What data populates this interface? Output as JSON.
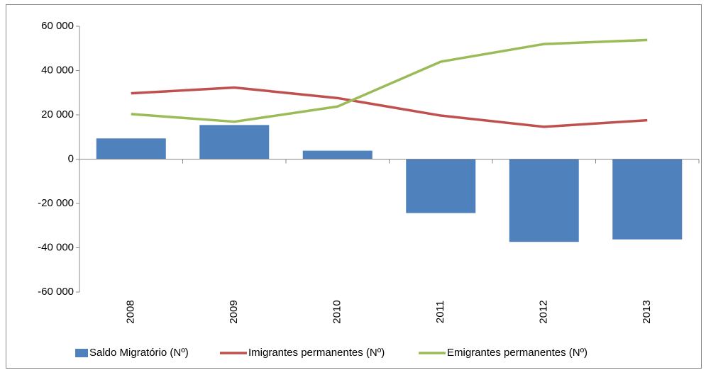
{
  "chart_data": {
    "type": "combo",
    "categories": [
      "2008",
      "2009",
      "2010",
      "2011",
      "2012",
      "2013"
    ],
    "series": [
      {
        "name": "Saldo Migratório (Nº)",
        "type": "bar",
        "color": "#4f81bd",
        "values": [
          9361,
          15408,
          3815,
          -24331,
          -37352,
          -36232
        ]
      },
      {
        "name": "Imigrantes permanentes (Nº)",
        "type": "line",
        "color": "#c0504d",
        "values": [
          29718,
          32307,
          27575,
          19667,
          14606,
          17554
        ]
      },
      {
        "name": "Emigrantes permanentes (Nº)",
        "type": "line",
        "color": "#9bbb59",
        "values": [
          20357,
          16899,
          23760,
          43998,
          51958,
          53786
        ]
      }
    ],
    "ylim": [
      -60000,
      60000
    ],
    "yticks": [
      {
        "value": -60000,
        "label": "-60 000"
      },
      {
        "value": -40000,
        "label": "-40 000"
      },
      {
        "value": -20000,
        "label": "-20 000"
      },
      0,
      {
        "value": 20000,
        "label": "20 000"
      },
      {
        "value": 40000,
        "label": "40 000"
      },
      {
        "value": 60000,
        "label": "60 000"
      }
    ],
    "legend": "bottom",
    "grid": false
  }
}
